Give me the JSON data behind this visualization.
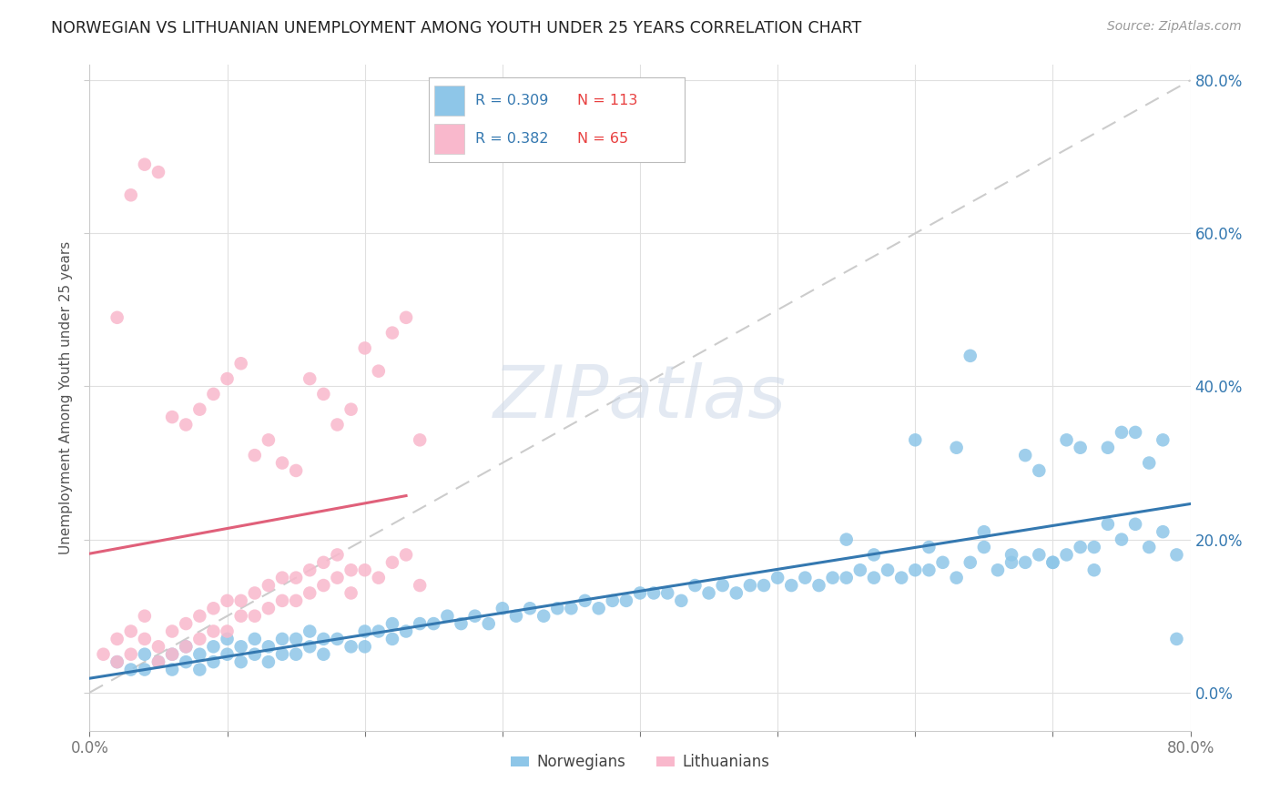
{
  "title": "NORWEGIAN VS LITHUANIAN UNEMPLOYMENT AMONG YOUTH UNDER 25 YEARS CORRELATION CHART",
  "source": "Source: ZipAtlas.com",
  "ylabel": "Unemployment Among Youth under 25 years",
  "legend_blue_r": "0.309",
  "legend_blue_n": "113",
  "legend_pink_r": "0.382",
  "legend_pink_n": "65",
  "legend_blue_label": "Norwegians",
  "legend_pink_label": "Lithuanians",
  "xlim": [
    0.0,
    0.8
  ],
  "ylim": [
    -0.05,
    0.82
  ],
  "title_color": "#222222",
  "source_color": "#999999",
  "blue_color": "#8ec6e8",
  "pink_color": "#f9b8cc",
  "blue_trend_color": "#3478b0",
  "pink_trend_color": "#e0607a",
  "diagonal_color": "#cccccc",
  "r_value_color": "#3478b0",
  "n_value_color": "#e84040",
  "watermark_color": "#ccd8e8",
  "background_color": "#ffffff",
  "grid_color": "#e0e0e0",
  "ytick_right_color": "#3478b0",
  "blue_x": [
    0.02,
    0.03,
    0.04,
    0.04,
    0.05,
    0.06,
    0.06,
    0.07,
    0.07,
    0.08,
    0.08,
    0.09,
    0.09,
    0.1,
    0.1,
    0.11,
    0.11,
    0.12,
    0.12,
    0.13,
    0.13,
    0.14,
    0.14,
    0.15,
    0.15,
    0.16,
    0.16,
    0.17,
    0.17,
    0.18,
    0.19,
    0.2,
    0.2,
    0.21,
    0.22,
    0.22,
    0.23,
    0.24,
    0.25,
    0.26,
    0.27,
    0.28,
    0.29,
    0.3,
    0.31,
    0.32,
    0.33,
    0.34,
    0.35,
    0.36,
    0.37,
    0.38,
    0.39,
    0.4,
    0.41,
    0.42,
    0.43,
    0.44,
    0.45,
    0.46,
    0.47,
    0.48,
    0.49,
    0.5,
    0.51,
    0.52,
    0.53,
    0.54,
    0.55,
    0.56,
    0.57,
    0.58,
    0.59,
    0.6,
    0.61,
    0.62,
    0.63,
    0.64,
    0.65,
    0.66,
    0.67,
    0.68,
    0.69,
    0.7,
    0.71,
    0.72,
    0.73,
    0.74,
    0.75,
    0.76,
    0.77,
    0.78,
    0.79,
    0.6,
    0.63,
    0.68,
    0.72,
    0.75,
    0.78,
    0.55,
    0.57,
    0.61,
    0.65,
    0.67,
    0.7,
    0.73,
    0.76,
    0.79,
    0.64,
    0.69,
    0.71,
    0.74,
    0.77
  ],
  "blue_y": [
    0.04,
    0.03,
    0.05,
    0.03,
    0.04,
    0.05,
    0.03,
    0.06,
    0.04,
    0.05,
    0.03,
    0.06,
    0.04,
    0.07,
    0.05,
    0.06,
    0.04,
    0.07,
    0.05,
    0.06,
    0.04,
    0.07,
    0.05,
    0.07,
    0.05,
    0.08,
    0.06,
    0.07,
    0.05,
    0.07,
    0.06,
    0.08,
    0.06,
    0.08,
    0.09,
    0.07,
    0.08,
    0.09,
    0.09,
    0.1,
    0.09,
    0.1,
    0.09,
    0.11,
    0.1,
    0.11,
    0.1,
    0.11,
    0.11,
    0.12,
    0.11,
    0.12,
    0.12,
    0.13,
    0.13,
    0.13,
    0.12,
    0.14,
    0.13,
    0.14,
    0.13,
    0.14,
    0.14,
    0.15,
    0.14,
    0.15,
    0.14,
    0.15,
    0.15,
    0.16,
    0.15,
    0.16,
    0.15,
    0.16,
    0.16,
    0.17,
    0.15,
    0.17,
    0.19,
    0.16,
    0.18,
    0.17,
    0.18,
    0.17,
    0.18,
    0.19,
    0.16,
    0.22,
    0.2,
    0.22,
    0.19,
    0.21,
    0.07,
    0.33,
    0.32,
    0.31,
    0.32,
    0.34,
    0.33,
    0.2,
    0.18,
    0.19,
    0.21,
    0.17,
    0.17,
    0.19,
    0.34,
    0.18,
    0.44,
    0.29,
    0.33,
    0.32,
    0.3
  ],
  "pink_x": [
    0.01,
    0.02,
    0.02,
    0.03,
    0.03,
    0.04,
    0.04,
    0.05,
    0.05,
    0.06,
    0.06,
    0.07,
    0.07,
    0.08,
    0.08,
    0.09,
    0.09,
    0.1,
    0.1,
    0.11,
    0.11,
    0.12,
    0.12,
    0.13,
    0.13,
    0.14,
    0.14,
    0.15,
    0.15,
    0.16,
    0.16,
    0.17,
    0.17,
    0.18,
    0.18,
    0.19,
    0.19,
    0.2,
    0.21,
    0.22,
    0.23,
    0.24,
    0.02,
    0.03,
    0.04,
    0.05,
    0.06,
    0.07,
    0.08,
    0.09,
    0.1,
    0.11,
    0.12,
    0.13,
    0.14,
    0.15,
    0.16,
    0.17,
    0.18,
    0.19,
    0.2,
    0.21,
    0.22,
    0.23,
    0.24
  ],
  "pink_y": [
    0.05,
    0.07,
    0.04,
    0.08,
    0.05,
    0.1,
    0.07,
    0.06,
    0.04,
    0.08,
    0.05,
    0.09,
    0.06,
    0.1,
    0.07,
    0.11,
    0.08,
    0.12,
    0.08,
    0.12,
    0.1,
    0.13,
    0.1,
    0.14,
    0.11,
    0.15,
    0.12,
    0.15,
    0.12,
    0.16,
    0.13,
    0.17,
    0.14,
    0.18,
    0.15,
    0.16,
    0.13,
    0.16,
    0.15,
    0.17,
    0.18,
    0.14,
    0.49,
    0.65,
    0.69,
    0.68,
    0.36,
    0.35,
    0.37,
    0.39,
    0.41,
    0.43,
    0.31,
    0.33,
    0.3,
    0.29,
    0.41,
    0.39,
    0.35,
    0.37,
    0.45,
    0.42,
    0.47,
    0.49,
    0.33
  ]
}
